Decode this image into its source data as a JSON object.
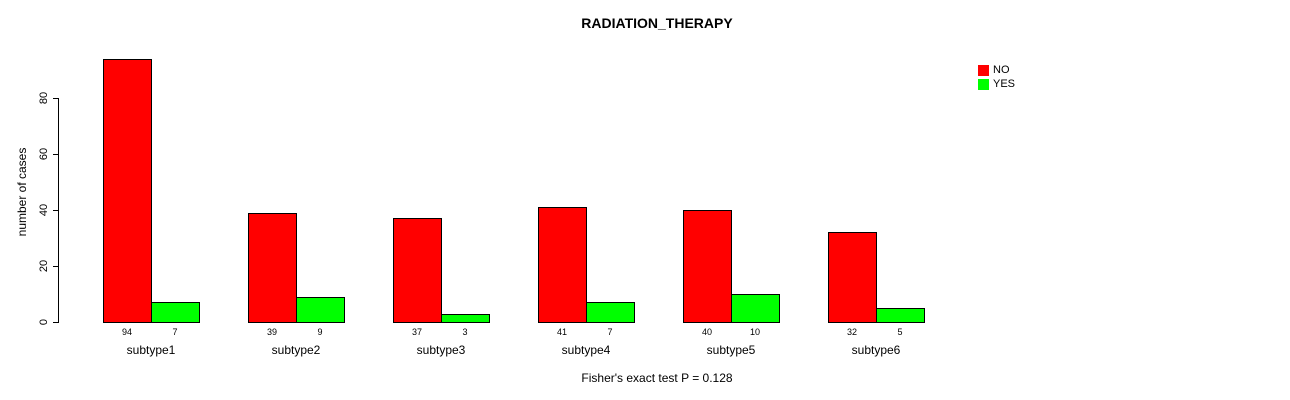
{
  "title": "RADIATION_THERAPY",
  "footer_annotation": "Fisher's exact test P = 0.128",
  "legend": {
    "items": [
      {
        "label": "NO",
        "color": "#FF0000"
      },
      {
        "label": "YES",
        "color": "#00FF00"
      }
    ]
  },
  "chart_data": {
    "type": "bar",
    "title": "RADIATION_THERAPY",
    "categories": [
      "subtype1",
      "subtype2",
      "subtype3",
      "subtype4",
      "subtype5",
      "subtype6"
    ],
    "series": [
      {
        "name": "NO",
        "color": "#FF0000",
        "values": [
          94,
          39,
          37,
          41,
          40,
          32
        ]
      },
      {
        "name": "YES",
        "color": "#00FF00",
        "values": [
          7,
          9,
          3,
          7,
          10,
          5
        ]
      }
    ],
    "xlabel": "",
    "ylabel": "number of cases",
    "yticks": [
      0,
      20,
      40,
      60,
      80
    ],
    "ylim": [
      0,
      94
    ],
    "grid": false,
    "legend_position": "topright",
    "annotation": "Fisher's exact test P = 0.128",
    "bar_value_labels_shown": true
  }
}
